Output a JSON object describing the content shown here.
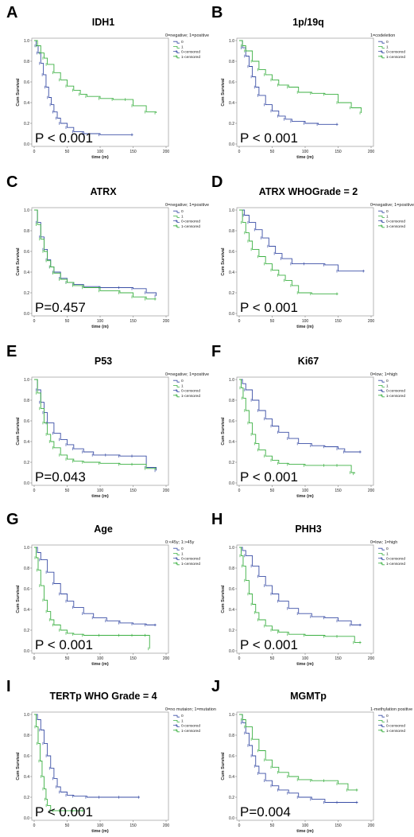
{
  "colors": {
    "group0": "#3b4fa6",
    "group1": "#3cb043"
  },
  "chart_data": [
    {
      "letter": "A",
      "title": "IDH1",
      "type": "line",
      "legend": [
        "0=negative; 1=positive",
        "0",
        "1",
        "0-censored",
        "1-censored"
      ],
      "xlabel": "time (m)",
      "ylabel": "Cum Survival",
      "xticks": [
        "0",
        "50",
        "100",
        "150",
        "200"
      ],
      "yticks": [
        "0.0",
        "0.2",
        "0.4",
        "0.6",
        "0.8",
        "1.0"
      ],
      "xlim": [
        0,
        200
      ],
      "ylim": [
        0,
        1
      ],
      "p_value": "P < 0.001",
      "series": [
        {
          "name": "0",
          "x": [
            0,
            3,
            6,
            10,
            14,
            18,
            22,
            26,
            30,
            35,
            40,
            50,
            60,
            75,
            100,
            150
          ],
          "y": [
            1.0,
            0.95,
            0.88,
            0.78,
            0.67,
            0.55,
            0.45,
            0.38,
            0.31,
            0.25,
            0.2,
            0.16,
            0.12,
            0.1,
            0.09,
            0.09
          ]
        },
        {
          "name": "1",
          "x": [
            0,
            5,
            10,
            15,
            20,
            30,
            40,
            50,
            60,
            70,
            80,
            100,
            120,
            140,
            150,
            170,
            185
          ],
          "y": [
            1.0,
            0.95,
            0.88,
            0.83,
            0.77,
            0.69,
            0.62,
            0.56,
            0.52,
            0.48,
            0.46,
            0.44,
            0.43,
            0.43,
            0.37,
            0.31,
            0.3
          ]
        }
      ]
    },
    {
      "letter": "B",
      "title": "1p/19q",
      "type": "line",
      "legend": [
        "1=codeletion",
        "0",
        "1",
        "0-censored",
        "1-censored"
      ],
      "xlabel": "time (m)",
      "ylabel": "Cum Survival",
      "xticks": [
        "0",
        "50",
        "100",
        "150",
        "200"
      ],
      "yticks": [
        "0.0",
        "0.2",
        "0.4",
        "0.6",
        "0.8",
        "1.0"
      ],
      "xlim": [
        0,
        200
      ],
      "ylim": [
        0,
        1
      ],
      "p_value": "P < 0.001",
      "series": [
        {
          "name": "0",
          "x": [
            0,
            5,
            10,
            15,
            20,
            25,
            30,
            40,
            50,
            60,
            70,
            80,
            100,
            120,
            150
          ],
          "y": [
            1.0,
            0.93,
            0.85,
            0.75,
            0.65,
            0.55,
            0.47,
            0.38,
            0.32,
            0.27,
            0.24,
            0.22,
            0.2,
            0.19,
            0.19
          ]
        },
        {
          "name": "1",
          "x": [
            0,
            5,
            10,
            20,
            30,
            40,
            50,
            60,
            75,
            90,
            110,
            130,
            150,
            170,
            185
          ],
          "y": [
            1.0,
            0.95,
            0.9,
            0.8,
            0.72,
            0.67,
            0.62,
            0.57,
            0.55,
            0.5,
            0.49,
            0.48,
            0.4,
            0.35,
            0.3
          ]
        }
      ]
    },
    {
      "letter": "C",
      "title": "ATRX",
      "type": "line",
      "legend": [
        "0=negative; 1=positive",
        "0",
        "1",
        "0-censored",
        "1-censored"
      ],
      "xlabel": "time (m)",
      "ylabel": "Cum Survival",
      "xticks": [
        "0",
        "50",
        "100",
        "150",
        "200"
      ],
      "yticks": [
        "0.0",
        "0.2",
        "0.4",
        "0.6",
        "0.8",
        "1.0"
      ],
      "xlim": [
        0,
        200
      ],
      "ylim": [
        0,
        1
      ],
      "p_value": "P=0.457",
      "series": [
        {
          "name": "0",
          "x": [
            0,
            5,
            10,
            15,
            20,
            25,
            30,
            40,
            50,
            60,
            75,
            100,
            130,
            150,
            170,
            185
          ],
          "y": [
            1.0,
            0.88,
            0.74,
            0.62,
            0.52,
            0.45,
            0.4,
            0.34,
            0.3,
            0.28,
            0.26,
            0.25,
            0.25,
            0.24,
            0.2,
            0.17
          ]
        },
        {
          "name": "1",
          "x": [
            0,
            5,
            10,
            15,
            20,
            25,
            30,
            40,
            50,
            60,
            75,
            100,
            130,
            150,
            170,
            185
          ],
          "y": [
            1.0,
            0.86,
            0.72,
            0.6,
            0.51,
            0.45,
            0.39,
            0.33,
            0.3,
            0.27,
            0.25,
            0.22,
            0.2,
            0.16,
            0.14,
            0.14
          ]
        }
      ]
    },
    {
      "letter": "D",
      "title": "ATRX WHOGrade = 2",
      "type": "line",
      "legend": [
        "0=negative; 1=positive",
        "0",
        "1",
        "0-censored",
        "1-censored"
      ],
      "xlabel": "time (m)",
      "ylabel": "Cum Survival",
      "xticks": [
        "0",
        "50",
        "100",
        "150",
        "200"
      ],
      "yticks": [
        "0.0",
        "0.2",
        "0.4",
        "0.6",
        "0.8",
        "1.0"
      ],
      "xlim": [
        0,
        200
      ],
      "ylim": [
        0,
        1
      ],
      "p_value": "P < 0.001",
      "series": [
        {
          "name": "0",
          "x": [
            0,
            8,
            15,
            25,
            35,
            45,
            55,
            65,
            80,
            100,
            130,
            150,
            190
          ],
          "y": [
            1.0,
            0.95,
            0.88,
            0.81,
            0.73,
            0.65,
            0.58,
            0.53,
            0.48,
            0.48,
            0.47,
            0.41,
            0.41
          ]
        },
        {
          "name": "1",
          "x": [
            0,
            5,
            10,
            15,
            20,
            30,
            40,
            50,
            60,
            70,
            80,
            90,
            110,
            150
          ],
          "y": [
            1.0,
            0.88,
            0.78,
            0.7,
            0.62,
            0.55,
            0.48,
            0.42,
            0.37,
            0.32,
            0.27,
            0.2,
            0.19,
            0.19
          ]
        }
      ]
    },
    {
      "letter": "E",
      "title": "P53",
      "type": "line",
      "legend": [
        "0=negative; 1=positive",
        "0",
        "1",
        "0-censored",
        "1-censored"
      ],
      "xlabel": "time (m)",
      "ylabel": "Cum Survival",
      "xticks": [
        "0",
        "50",
        "100",
        "150",
        "200"
      ],
      "yticks": [
        "0.0",
        "0.2",
        "0.4",
        "0.6",
        "0.8",
        "1.0"
      ],
      "xlim": [
        0,
        200
      ],
      "ylim": [
        0,
        1
      ],
      "p_value": "P=0.043",
      "series": [
        {
          "name": "0",
          "x": [
            0,
            5,
            10,
            15,
            20,
            30,
            40,
            50,
            60,
            75,
            90,
            110,
            130,
            150,
            170,
            185
          ],
          "y": [
            1.0,
            0.9,
            0.78,
            0.68,
            0.58,
            0.48,
            0.42,
            0.37,
            0.33,
            0.3,
            0.27,
            0.27,
            0.26,
            0.26,
            0.15,
            0.12
          ]
        },
        {
          "name": "1",
          "x": [
            0,
            5,
            10,
            15,
            20,
            25,
            30,
            40,
            50,
            60,
            75,
            100,
            130,
            150,
            170,
            185
          ],
          "y": [
            1.0,
            0.87,
            0.72,
            0.58,
            0.47,
            0.4,
            0.34,
            0.27,
            0.23,
            0.21,
            0.2,
            0.19,
            0.18,
            0.18,
            0.14,
            0.14
          ]
        }
      ]
    },
    {
      "letter": "F",
      "title": "Ki67",
      "type": "line",
      "legend": [
        "0=low; 1=high",
        "0",
        "1",
        "0-censored",
        "1-censored"
      ],
      "xlabel": "time (m)",
      "ylabel": "Cum Survival",
      "xticks": [
        "0",
        "50",
        "100",
        "150",
        "200"
      ],
      "yticks": [
        "0.0",
        "0.2",
        "0.4",
        "0.6",
        "0.8",
        "1.0"
      ],
      "xlim": [
        0,
        200
      ],
      "ylim": [
        0,
        1
      ],
      "p_value": "P < 0.001",
      "series": [
        {
          "name": "0",
          "x": [
            0,
            5,
            10,
            20,
            30,
            40,
            50,
            60,
            75,
            90,
            110,
            130,
            150,
            160,
            185
          ],
          "y": [
            1.0,
            0.96,
            0.9,
            0.8,
            0.7,
            0.62,
            0.55,
            0.49,
            0.43,
            0.38,
            0.36,
            0.35,
            0.33,
            0.3,
            0.3
          ]
        },
        {
          "name": "1",
          "x": [
            0,
            3,
            6,
            10,
            15,
            20,
            25,
            30,
            40,
            50,
            60,
            75,
            100,
            130,
            150,
            170,
            175
          ],
          "y": [
            1.0,
            0.92,
            0.82,
            0.7,
            0.58,
            0.47,
            0.38,
            0.32,
            0.26,
            0.22,
            0.19,
            0.18,
            0.17,
            0.17,
            0.17,
            0.1,
            0.09
          ]
        }
      ]
    },
    {
      "letter": "G",
      "title": "Age",
      "type": "line",
      "legend": [
        "0:<45y; 1:>45y",
        "0",
        "1",
        "0-censored",
        "1-censored"
      ],
      "xlabel": "time (m)",
      "ylabel": "Cum Survival",
      "xticks": [
        "0",
        "50",
        "100",
        "150",
        "200"
      ],
      "yticks": [
        "0.0",
        "0.2",
        "0.4",
        "0.6",
        "0.8",
        "1.0"
      ],
      "xlim": [
        0,
        200
      ],
      "ylim": [
        0,
        1
      ],
      "p_value": "P < 0.001",
      "series": [
        {
          "name": "0",
          "x": [
            0,
            5,
            10,
            20,
            30,
            40,
            50,
            60,
            75,
            90,
            110,
            130,
            150,
            170,
            185
          ],
          "y": [
            1.0,
            0.95,
            0.88,
            0.76,
            0.65,
            0.55,
            0.48,
            0.42,
            0.36,
            0.32,
            0.29,
            0.27,
            0.26,
            0.25,
            0.25
          ]
        },
        {
          "name": "1",
          "x": [
            0,
            3,
            6,
            10,
            15,
            20,
            25,
            30,
            40,
            50,
            60,
            75,
            100,
            130,
            150,
            170,
            175
          ],
          "y": [
            1.0,
            0.9,
            0.78,
            0.63,
            0.49,
            0.38,
            0.3,
            0.25,
            0.2,
            0.17,
            0.16,
            0.15,
            0.15,
            0.15,
            0.15,
            0.15,
            0.02
          ]
        }
      ]
    },
    {
      "letter": "H",
      "title": "PHH3",
      "type": "line",
      "legend": [
        "0=low; 1=high",
        "0",
        "1",
        "0-censored",
        "1-censored"
      ],
      "xlabel": "time (m)",
      "ylabel": "Cum Survival",
      "xticks": [
        "0",
        "50",
        "100",
        "150",
        "200"
      ],
      "yticks": [
        "0.0",
        "0.2",
        "0.4",
        "0.6",
        "0.8",
        "1.0"
      ],
      "xlim": [
        0,
        200
      ],
      "ylim": [
        0,
        1
      ],
      "p_value": "P < 0.001",
      "series": [
        {
          "name": "0",
          "x": [
            0,
            5,
            10,
            20,
            30,
            40,
            50,
            60,
            75,
            90,
            110,
            130,
            150,
            170,
            185
          ],
          "y": [
            1.0,
            0.97,
            0.92,
            0.82,
            0.72,
            0.63,
            0.55,
            0.48,
            0.41,
            0.36,
            0.33,
            0.32,
            0.29,
            0.25,
            0.25
          ]
        },
        {
          "name": "1",
          "x": [
            0,
            3,
            6,
            10,
            15,
            20,
            25,
            30,
            40,
            50,
            60,
            75,
            100,
            130,
            150,
            175,
            185
          ],
          "y": [
            1.0,
            0.92,
            0.82,
            0.68,
            0.55,
            0.45,
            0.37,
            0.3,
            0.24,
            0.2,
            0.18,
            0.16,
            0.15,
            0.14,
            0.14,
            0.08,
            0.08
          ]
        }
      ]
    },
    {
      "letter": "I",
      "title": "TERTp WHO Grade = 4",
      "type": "line",
      "legend": [
        "0=no mutaion; 1=mutation",
        "0",
        "1",
        "0-censored",
        "1-censored"
      ],
      "xlabel": "time (m)",
      "ylabel": "Cum Survival",
      "xticks": [
        "0",
        "50",
        "100",
        "150",
        "200"
      ],
      "yticks": [
        "0.0",
        "0.2",
        "0.4",
        "0.6",
        "0.8",
        "1.0"
      ],
      "xlim": [
        0,
        200
      ],
      "ylim": [
        0,
        1
      ],
      "p_value": "P < 0.001",
      "series": [
        {
          "name": "0",
          "x": [
            0,
            5,
            10,
            15,
            20,
            25,
            30,
            35,
            40,
            50,
            60,
            80,
            100,
            130,
            160
          ],
          "y": [
            1.0,
            0.95,
            0.85,
            0.72,
            0.6,
            0.48,
            0.38,
            0.3,
            0.25,
            0.22,
            0.21,
            0.2,
            0.2,
            0.2,
            0.2
          ]
        },
        {
          "name": "1",
          "x": [
            0,
            3,
            6,
            9,
            12,
            15,
            18,
            20,
            25,
            30,
            40,
            60,
            75
          ],
          "y": [
            1.0,
            0.88,
            0.72,
            0.55,
            0.4,
            0.28,
            0.18,
            0.12,
            0.07,
            0.07,
            0.07,
            0.07,
            0.07
          ]
        }
      ]
    },
    {
      "letter": "J",
      "title": "MGMTp",
      "type": "line",
      "legend": [
        "1-methylation positive",
        "0",
        "1",
        "0-censored",
        "1-censored"
      ],
      "xlabel": "time (m)",
      "ylabel": "Cum Survival",
      "xticks": [
        "0",
        "50",
        "100",
        "150",
        "200"
      ],
      "yticks": [
        "0.0",
        "0.2",
        "0.4",
        "0.6",
        "0.8",
        "1.0"
      ],
      "xlim": [
        0,
        200
      ],
      "ylim": [
        0,
        1
      ],
      "p_value": "P=0.004",
      "series": [
        {
          "name": "0",
          "x": [
            0,
            5,
            10,
            15,
            20,
            25,
            30,
            40,
            50,
            60,
            75,
            90,
            110,
            130,
            150,
            180
          ],
          "y": [
            1.0,
            0.92,
            0.82,
            0.7,
            0.6,
            0.5,
            0.43,
            0.36,
            0.31,
            0.27,
            0.24,
            0.2,
            0.18,
            0.15,
            0.15,
            0.15
          ]
        },
        {
          "name": "1",
          "x": [
            0,
            5,
            10,
            20,
            30,
            40,
            50,
            60,
            75,
            90,
            110,
            130,
            150,
            165,
            180
          ],
          "y": [
            1.0,
            0.95,
            0.88,
            0.76,
            0.65,
            0.56,
            0.49,
            0.44,
            0.4,
            0.37,
            0.36,
            0.36,
            0.33,
            0.27,
            0.27
          ]
        }
      ]
    }
  ]
}
